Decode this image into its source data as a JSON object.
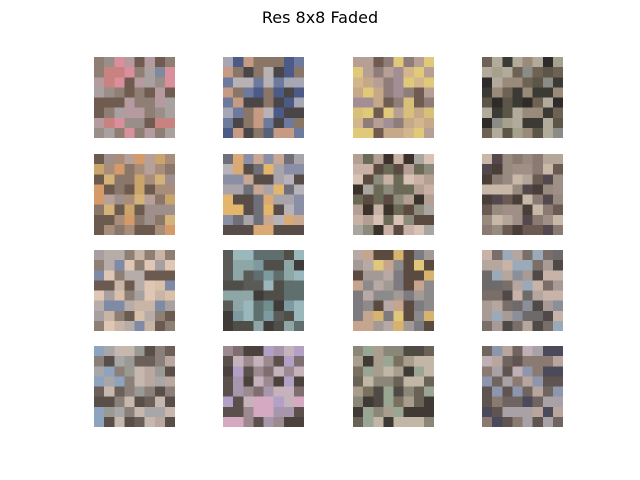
{
  "figure": {
    "title": "Res 8x8 Faded"
  },
  "grid": {
    "rows": 4,
    "cols": 4,
    "pixel_resolution": 8
  },
  "tiles": [
    {
      "row": 0,
      "col": 0,
      "palette": [
        "#a9a1a0",
        "#8e7e74",
        "#b59aa0",
        "#d98f9c",
        "#c8827f",
        "#6f5b4f",
        "#9a8f88",
        "#7f8a9c"
      ]
    },
    {
      "row": 0,
      "col": 1,
      "palette": [
        "#4b5a86",
        "#6e7a9d",
        "#a7a6b4",
        "#8a7666",
        "#4a4546",
        "#c79a84",
        "#55607a",
        "#b9b2b5"
      ]
    },
    {
      "row": 0,
      "col": 2,
      "palette": [
        "#d8c07a",
        "#e0c979",
        "#c6a989",
        "#b69f94",
        "#8e7d78",
        "#a48e96",
        "#6f5b50",
        "#d3b68b"
      ]
    },
    {
      "row": 0,
      "col": 3,
      "palette": [
        "#3b3a34",
        "#5b5647",
        "#a6a18d",
        "#6d6253",
        "#8a8c85",
        "#b2aa9a",
        "#2f2b2b",
        "#9a8a7a"
      ]
    },
    {
      "row": 1,
      "col": 0,
      "palette": [
        "#d4b37a",
        "#c9a56b",
        "#a88e7a",
        "#8a776a",
        "#6c5a4e",
        "#d59a6a",
        "#b7a09a",
        "#9f8f8a"
      ]
    },
    {
      "row": 1,
      "col": 1,
      "palette": [
        "#e3b66c",
        "#d9aa74",
        "#a9a3aa",
        "#8a8fa6",
        "#6f6f7a",
        "#b8b3b8",
        "#574c47",
        "#c9a893"
      ]
    },
    {
      "row": 1,
      "col": 2,
      "palette": [
        "#3b322c",
        "#c9b1a6",
        "#d8c2b5",
        "#8c8a7a",
        "#6a6a56",
        "#b39f94",
        "#5a4a40",
        "#a8a6a0"
      ]
    },
    {
      "row": 1,
      "col": 3,
      "palette": [
        "#4a3e38",
        "#8a7a72",
        "#b5a69a",
        "#6a5a52",
        "#a08f87",
        "#c8b8a8",
        "#54484f",
        "#978a7e"
      ]
    },
    {
      "row": 2,
      "col": 0,
      "palette": [
        "#b7ada8",
        "#d9c0a9",
        "#8e7f74",
        "#6a5a4f",
        "#e0c7b5",
        "#c9b5a6",
        "#a89fa0",
        "#7e8aa6"
      ]
    },
    {
      "row": 2,
      "col": 1,
      "palette": [
        "#4f4e49",
        "#6f8f8f",
        "#9ab8bb",
        "#5e6f6e",
        "#3e3b38",
        "#7c9aa0",
        "#5a5a56",
        "#8fa6a6"
      ]
    },
    {
      "row": 2,
      "col": 2,
      "palette": [
        "#e0c77a",
        "#d6b46f",
        "#a39a96",
        "#7d7a80",
        "#5a4a40",
        "#c6a58f",
        "#8c8a8a",
        "#b9a9a4"
      ]
    },
    {
      "row": 2,
      "col": 3,
      "palette": [
        "#c9b2a8",
        "#a89a94",
        "#8a8f9a",
        "#6f6a6a",
        "#4f4a48",
        "#9aaab8",
        "#b5a69e",
        "#7a6e68"
      ]
    },
    {
      "row": 3,
      "col": 0,
      "palette": [
        "#8ea3be",
        "#a9a6a8",
        "#8a7f79",
        "#6c5f58",
        "#b9a7a0",
        "#9a9a94",
        "#5a4f48",
        "#c6b8ae"
      ]
    },
    {
      "row": 3,
      "col": 1,
      "palette": [
        "#4b423e",
        "#9c8a90",
        "#d6a9c2",
        "#b3a0c6",
        "#7f6e70",
        "#c6b2bb",
        "#5c504c",
        "#a797ad"
      ]
    },
    {
      "row": 3,
      "col": 2,
      "palette": [
        "#4f4b44",
        "#8a8678",
        "#a99e8e",
        "#6a6256",
        "#c2b7a6",
        "#3f3a34",
        "#9aa694",
        "#7a7060"
      ]
    },
    {
      "row": 3,
      "col": 3,
      "palette": [
        "#8e96ae",
        "#a8a2a6",
        "#6f6460",
        "#4b4a5a",
        "#b8a69e",
        "#8a7a72",
        "#5f5450",
        "#c0b0b6"
      ]
    }
  ]
}
